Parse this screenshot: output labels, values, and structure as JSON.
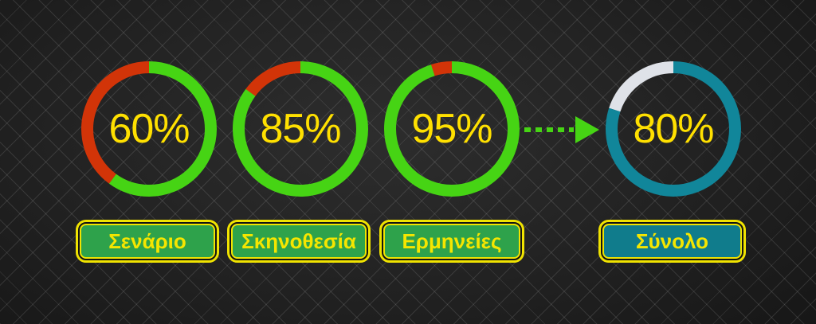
{
  "slide": {
    "description": "ratings dashboard with three category donut gauges combined into a total gauge",
    "arrow": {
      "style": "dashed",
      "direction": "right",
      "color": "#46d414"
    }
  },
  "colors": {
    "background_center": "#2d2d2d",
    "background_edge": "#141414",
    "grid_line": "#4a4a4a",
    "value_green": "#46d414",
    "remainder_red": "#d23408",
    "value_teal": "#11869a",
    "remainder_white": "#dfe2e8",
    "percent_label_yellow": "#ffe000",
    "button_border_yellow": "#f0e300",
    "button_text_yellow": "#f5e600",
    "button_green_fill": "#2ea24b",
    "button_teal_fill": "#107c8c"
  },
  "chart_data": [
    {
      "type": "pie",
      "variant": "donut-gauge",
      "title": "Σενάριο",
      "center_label": "60%",
      "values": [
        60,
        40
      ],
      "colors": [
        "#46d414",
        "#d23408"
      ],
      "start_angle_deg": -90,
      "direction": "clockwise",
      "button_fill": "#2ea24b"
    },
    {
      "type": "pie",
      "variant": "donut-gauge",
      "title": "Σκηνοθεσία",
      "center_label": "85%",
      "values": [
        85,
        15
      ],
      "colors": [
        "#46d414",
        "#d23408"
      ],
      "start_angle_deg": -90,
      "direction": "clockwise",
      "button_fill": "#2ea24b"
    },
    {
      "type": "pie",
      "variant": "donut-gauge",
      "title": "Ερμηνείες",
      "center_label": "95%",
      "values": [
        95,
        5
      ],
      "colors": [
        "#46d414",
        "#d23408"
      ],
      "start_angle_deg": -90,
      "direction": "clockwise",
      "button_fill": "#2ea24b"
    },
    {
      "type": "pie",
      "variant": "donut-gauge",
      "title": "Σύνολο",
      "center_label": "80%",
      "values": [
        80,
        20
      ],
      "colors": [
        "#11869a",
        "#dfe2e8"
      ],
      "start_angle_deg": -90,
      "direction": "clockwise",
      "button_fill": "#107c8c"
    }
  ]
}
